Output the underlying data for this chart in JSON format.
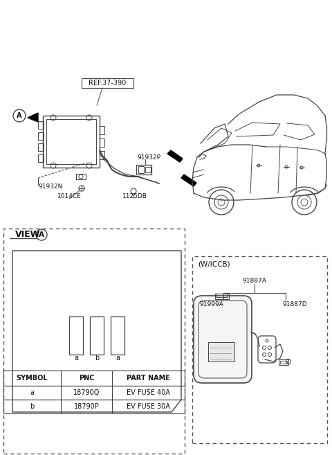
{
  "bg_color": "#ffffff",
  "lc": "#444444",
  "dc": "#555555",
  "ref_label": "REF.37-390",
  "part_91932P": "91932P",
  "part_91932N": "91932N",
  "part_1014CE": "1014CE",
  "part_1125DB": "1125DB",
  "view_label": "VIEW",
  "wiccb_label": "(W/ICCB)",
  "p91887A": "91887A",
  "p91999A": "91999A",
  "p91887D": "91887D",
  "table_headers": [
    "SYMBOL",
    "PNC",
    "PART NAME"
  ],
  "table_rows": [
    [
      "a",
      "18790Q",
      "EV FUSE 40A"
    ],
    [
      "b",
      "18790P",
      "EV FUSE 30A"
    ]
  ],
  "fuse_labels": [
    "a",
    "b",
    "a"
  ]
}
